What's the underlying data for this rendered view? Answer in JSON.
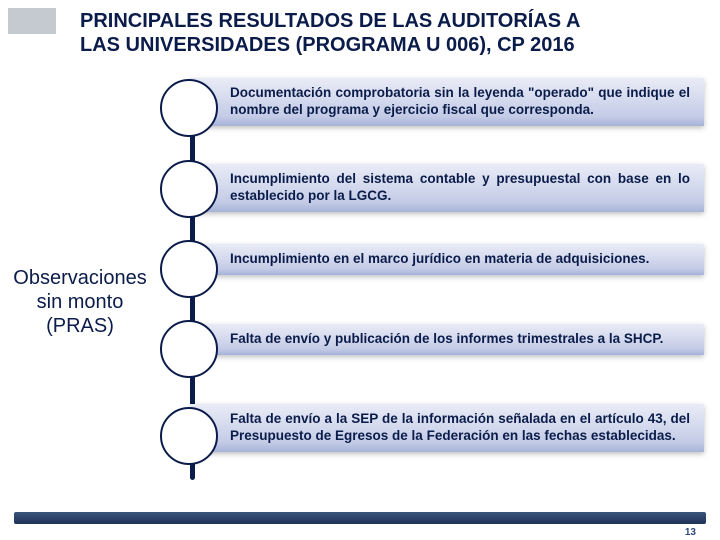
{
  "title": {
    "line1": "PRINCIPALES RESULTADOS DE LAS AUDITORÍAS A",
    "line2": "LAS UNIVERSIDADES (PROGRAMA U 006), CP 2016"
  },
  "sideLabel": {
    "line1": "Observaciones",
    "line2": "sin monto",
    "line3": "(PRAS)"
  },
  "observations": [
    {
      "text": "Documentación comprobatoria sin la leyenda \"operado\" que indique el nombre del programa y ejercicio fiscal que corresponda."
    },
    {
      "text": "Incumplimiento del sistema contable y presupuestal con base en lo establecido por la LGCG."
    },
    {
      "text": "Incumplimiento en el marco jurídico en materia de adquisiciones."
    },
    {
      "text": "Falta de envío y publicación de los informes trimestrales a la SHCP."
    },
    {
      "text": "Falta de envío a la SEP de la información señalada en el artículo 43, del Presupuesto de Egresos de la Federación en las fechas establecidas."
    }
  ],
  "pageNumber": "13",
  "colors": {
    "primary": "#0b1c4a",
    "cornerBox": "#6b7b8a",
    "pillTop": "#e9ecf6",
    "pillBottom": "#a7b2d9",
    "footerTop": "#3c557a",
    "footerBottom": "#1e3258"
  }
}
